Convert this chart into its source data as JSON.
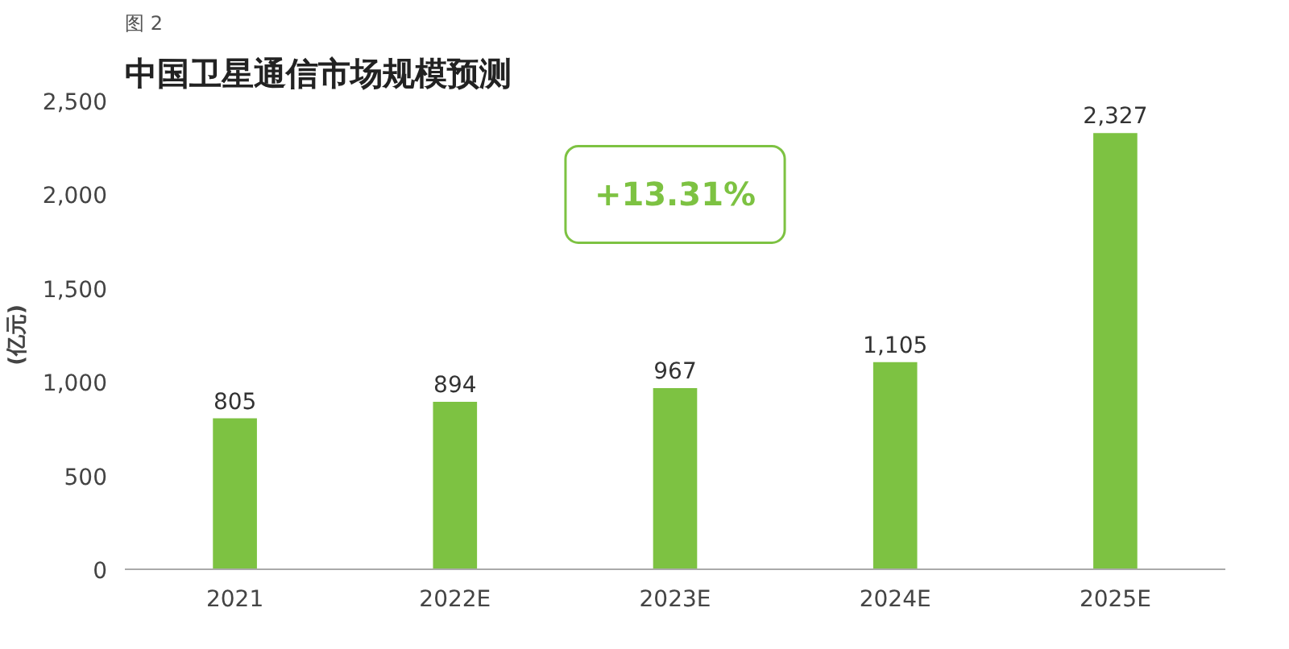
{
  "chart_data": {
    "type": "bar",
    "title": "中国卫星通信市场规模预测",
    "ylabel": "(亿元)",
    "categories": [
      "2021",
      "2022E",
      "2023E",
      "2024E",
      "2025E"
    ],
    "values": [
      805,
      894,
      967,
      1105,
      2327
    ],
    "value_labels": [
      "805",
      "894",
      "967",
      "1,105",
      "2,327"
    ],
    "color": "#7dc242",
    "ylim": [
      0,
      2500
    ],
    "yticks": [
      0,
      {
        "value": 500,
        "label": "500"
      },
      {
        "value": 1000,
        "label": "1,000"
      },
      {
        "value": 1500,
        "label": "1,500"
      },
      {
        "value": 2000,
        "label": "2,000"
      },
      {
        "value": 2500,
        "label": "2,500"
      }
    ],
    "grid": false,
    "annotations": [
      "图 2",
      "+13.31%"
    ]
  }
}
